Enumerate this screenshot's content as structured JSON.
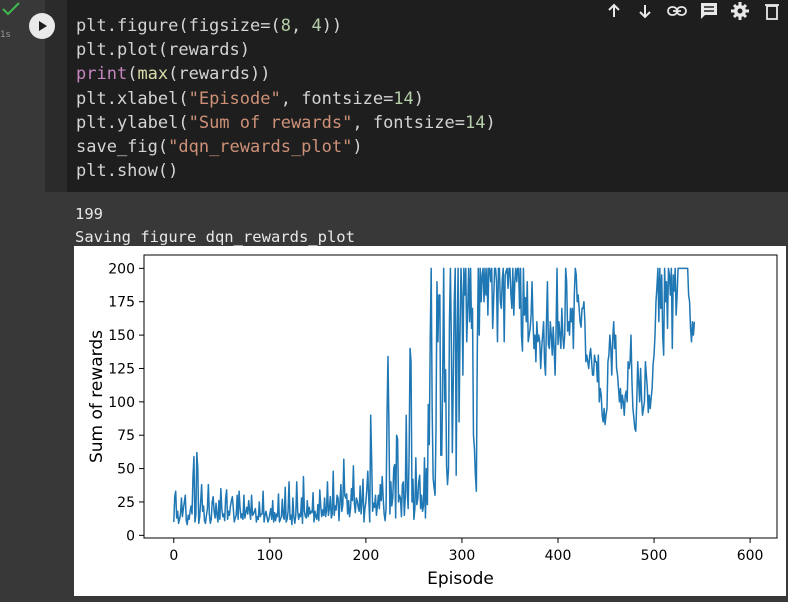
{
  "cell": {
    "exec_time": "1s",
    "code_lines": [
      [
        {
          "t": "plt.figure(figsize=("
        },
        {
          "t": "8",
          "c": "num"
        },
        {
          "t": ", "
        },
        {
          "t": "4",
          "c": "num"
        },
        {
          "t": "))"
        }
      ],
      [
        {
          "t": "plt.plot(rewards)"
        }
      ],
      [
        {
          "t": "print",
          "c": "kw"
        },
        {
          "t": "("
        },
        {
          "t": "max",
          "c": "fn"
        },
        {
          "t": "(rewards))"
        }
      ],
      [
        {
          "t": "plt.xlabel("
        },
        {
          "t": "\"Episode\"",
          "c": "str"
        },
        {
          "t": ", fontsize="
        },
        {
          "t": "14",
          "c": "num"
        },
        {
          "t": ")"
        }
      ],
      [
        {
          "t": "plt.ylabel("
        },
        {
          "t": "\"Sum of rewards\"",
          "c": "str"
        },
        {
          "t": ", fontsize="
        },
        {
          "t": "14",
          "c": "num"
        },
        {
          "t": ")"
        }
      ],
      [
        {
          "t": "save_fig("
        },
        {
          "t": "\"dqn_rewards_plot\"",
          "c": "str"
        },
        {
          "t": ")"
        }
      ],
      [
        {
          "t": "plt.show()"
        }
      ]
    ]
  },
  "toolbar": {
    "icons": [
      "arrow-up-icon",
      "arrow-down-icon",
      "link-icon",
      "comment-icon",
      "gear-icon",
      "delete-icon"
    ]
  },
  "output": {
    "line1": "199",
    "line2": "Saving figure dqn_rewards_plot"
  },
  "colors": {
    "series": "#1f77b4",
    "code_bg": "#1e1e1e",
    "output_bg": "#383838"
  },
  "chart_data": {
    "type": "line",
    "xlabel": "Episode",
    "ylabel": "Sum of rewards",
    "xlim": [
      -31,
      628
    ],
    "ylim": [
      -2,
      210
    ],
    "xticks": [
      0,
      100,
      200,
      300,
      400,
      500,
      600
    ],
    "yticks": [
      0,
      25,
      50,
      75,
      100,
      125,
      150,
      175,
      200
    ],
    "grid": false,
    "legend": "none",
    "series": [
      {
        "x_start": 0,
        "x_step": 1,
        "values": [
          10,
          29,
          33,
          13,
          18,
          9,
          12,
          16,
          28,
          14,
          20,
          25,
          30,
          11,
          8,
          15,
          12,
          18,
          22,
          16,
          44,
          59,
          10,
          15,
          62,
          50,
          9,
          14,
          25,
          38,
          18,
          22,
          11,
          9,
          15,
          20,
          38,
          16,
          9,
          12,
          25,
          29,
          18,
          13,
          24,
          15,
          10,
          26,
          12,
          35,
          20,
          14,
          16,
          11,
          28,
          34,
          12,
          18,
          15,
          22,
          26,
          29,
          20,
          10,
          13,
          15,
          30,
          12,
          33,
          21,
          13,
          16,
          12,
          30,
          13,
          17,
          21,
          16,
          26,
          18,
          12,
          30,
          15,
          16,
          18,
          20,
          10,
          14,
          12,
          25,
          14,
          16,
          16,
          33,
          10,
          15,
          18,
          14,
          10,
          12,
          16,
          20,
          12,
          26,
          10,
          17,
          11,
          16,
          14,
          31,
          10,
          12,
          14,
          27,
          14,
          12,
          36,
          10,
          12,
          18,
          40,
          12,
          15,
          8,
          28,
          14,
          9,
          15,
          40,
          18,
          12,
          16,
          14,
          28,
          9,
          44,
          18,
          14,
          13,
          26,
          14,
          21,
          16,
          18,
          17,
          32,
          10,
          18,
          14,
          12,
          23,
          11,
          34,
          22,
          14,
          19,
          15,
          28,
          14,
          18,
          40,
          15,
          20,
          29,
          13,
          16,
          48,
          15,
          22,
          19,
          30,
          28,
          11,
          25,
          38,
          18,
          23,
          57,
          30,
          28,
          31,
          16,
          26,
          14,
          20,
          35,
          26,
          52,
          24,
          17,
          28,
          26,
          21,
          18,
          37,
          16,
          25,
          42,
          10,
          20,
          25,
          35,
          48,
          27,
          10,
          90,
          57,
          18,
          24,
          21,
          30,
          15,
          22,
          30,
          20,
          38,
          26,
          44,
          28,
          16,
          11,
          20,
          90,
          134,
          80,
          16,
          40,
          22,
          28,
          50,
          53,
          13,
          75,
          72,
          25,
          30,
          28,
          14,
          38,
          40,
          15,
          28,
          90,
          33,
          20,
          60,
          140,
          130,
          25,
          42,
          12,
          20,
          58,
          23,
          27,
          40,
          45,
          20,
          30,
          18,
          22,
          58,
          13,
          50,
          23,
          98,
          68,
          148,
          200,
          95,
          43,
          36,
          30,
          80,
          190,
          145,
          180,
          180,
          60,
          60,
          121,
          200,
          100,
          124,
          52,
          38,
          50,
          160,
          200,
          144,
          62,
          118,
          175,
          200,
          45,
          150,
          200,
          85,
          150,
          200,
          180,
          120,
          200,
          180,
          200,
          145,
          170,
          200,
          160,
          200,
          155,
          170,
          75,
          65,
          45,
          33,
          140,
          200,
          150,
          200,
          175,
          195,
          200,
          175,
          200,
          180,
          200,
          165,
          200,
          200,
          190,
          200,
          155,
          176,
          200,
          200,
          190,
          145,
          200,
          200,
          175,
          170,
          192,
          200,
          145,
          195,
          198,
          200,
          185,
          200,
          200,
          180,
          170,
          200,
          165,
          190,
          200,
          190,
          200,
          200,
          170,
          200,
          150,
          138,
          200,
          165,
          178,
          160,
          190,
          145,
          150,
          155,
          165,
          190,
          160,
          140,
          150,
          130,
          160,
          145,
          150,
          145,
          125,
          140,
          150,
          160,
          130,
          120,
          160,
          190,
          143,
          140,
          160,
          150,
          135,
          156,
          140,
          120,
          155,
          200,
          143,
          160,
          150,
          140,
          170,
          150,
          140,
          150,
          200,
          190,
          153,
          160,
          150,
          170,
          160,
          170,
          140,
          180,
          200,
          195,
          175,
          180,
          170,
          160,
          156,
          170,
          170,
          175,
          160,
          130,
          135,
          130,
          125,
          135,
          140,
          130,
          120,
          120,
          135,
          130,
          130,
          115,
          135,
          100,
          110,
          105,
          90,
          85,
          95,
          83,
          90,
          95,
          130,
          135,
          150,
          140,
          120,
          148,
          160,
          140,
          150,
          125,
          120,
          110,
          100,
          110,
          95,
          105,
          100,
          90,
          105,
          108,
          100,
          130,
          125,
          130,
          150,
          115,
          95,
          88,
          80,
          78,
          100,
          130,
          115,
          100,
          125,
          103,
          90,
          95,
          100,
          130,
          120,
          110,
          92,
          105,
          95,
          103,
          110,
          128,
          135,
          150,
          175,
          186,
          200,
          160,
          200,
          170,
          195,
          150,
          135,
          200,
          175,
          190,
          155,
          200,
          195,
          180,
          200,
          140,
          195,
          183,
          200,
          165,
          180,
          200,
          200,
          200,
          200,
          200,
          200,
          200,
          200,
          200,
          200,
          200,
          180,
          175,
          155,
          145,
          160,
          150,
          160
        ]
      }
    ]
  }
}
